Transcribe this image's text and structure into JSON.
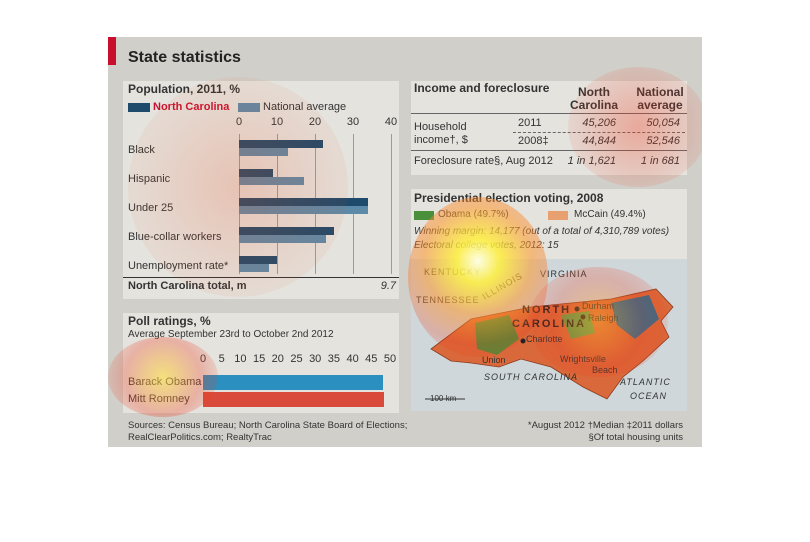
{
  "title": "State statistics",
  "colors": {
    "nc": "#1e4a6b",
    "national": "#5c8aa8",
    "obama": "#2b8fc0",
    "romney": "#d94a3a",
    "accent": "#c8102e"
  },
  "population": {
    "heading": "Population, 2011, %",
    "legend_nc": "North Carolina",
    "legend_national": "National average",
    "total_label": "North Carolina total, m",
    "total_value": "9.7"
  },
  "polls": {
    "heading": "Poll ratings, %",
    "subtitle": "Average September 23rd to October 2nd 2012"
  },
  "income": {
    "heading": "Income and foreclosure",
    "col1": "North Carolina",
    "col2": "National average",
    "row_label_1": "Household",
    "row_label_2": "income†, $",
    "year1": "2011",
    "year2": "2008‡",
    "nc_2011": "45,206",
    "nat_2011": "50,054",
    "nc_2008": "44,844",
    "nat_2008": "52,546",
    "fore_label": "Foreclosure rate§, Aug 2012",
    "fore_nc": "1 in 1,621",
    "fore_nat": "1 in 681"
  },
  "election": {
    "heading": "Presidential election voting, 2008",
    "obama": "Obama (49.7%)",
    "mccain": "McCain (49.4%)",
    "winning_line": "Winning margin: 14,177 (out of a total of 4,310,789 votes)",
    "electoral_line": "Electoral college votes, 2012: 15"
  },
  "map": {
    "kentucky": "KENTUCKY",
    "virginia": "VIRGINIA",
    "tennessee": "TENNESSEE",
    "illinois": "ILLINOIS",
    "nc1": "NORTH",
    "nc2": "CAROLINA",
    "durham": "Durham",
    "raleigh": "Raleigh",
    "charlotte": "Charlotte",
    "union": "Union",
    "wrightsville1": "Wrightsville",
    "wrightsville2": "Beach",
    "sc": "SOUTH CAROLINA",
    "atlantic1": "ATLANTIC",
    "atlantic2": "OCEAN",
    "scale": "100 km"
  },
  "sources": {
    "line1": "Sources: Census Bureau; North Carolina State Board of Elections;",
    "line2": "RealClearPolitics.com; RealtyTrac",
    "note1": "*August 2012  †Median  ‡2011 dollars",
    "note2": "§Of total housing units"
  },
  "chart_data": [
    {
      "type": "bar",
      "title": "Population, 2011, %",
      "categories": [
        "Black",
        "Hispanic",
        "Under 25",
        "Blue-collar workers",
        "Unemployment rate*"
      ],
      "series": [
        {
          "name": "North Carolina",
          "values": [
            22,
            9,
            34,
            25,
            10
          ]
        },
        {
          "name": "National average",
          "values": [
            13,
            17,
            34,
            23,
            8
          ]
        }
      ],
      "xlim": [
        0,
        40
      ],
      "ticks": [
        "0",
        "10",
        "20",
        "30",
        "40"
      ],
      "orientation": "horizontal"
    },
    {
      "type": "bar",
      "title": "Poll ratings, %",
      "categories": [
        "Barack Obama",
        "Mitt Romney"
      ],
      "values": [
        48,
        48.5
      ],
      "xlim": [
        0,
        50
      ],
      "ticks": [
        "0",
        "5",
        "10",
        "15",
        "20",
        "25",
        "30",
        "35",
        "40",
        "45",
        "50"
      ],
      "orientation": "horizontal"
    }
  ]
}
